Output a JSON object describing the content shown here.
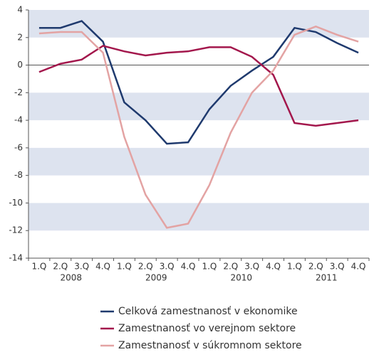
{
  "chart_data": {
    "type": "line",
    "categories": [
      "1.Q",
      "2.Q",
      "3.Q",
      "4.Q",
      "1.Q",
      "2.Q",
      "3.Q",
      "4.Q",
      "1.Q",
      "2.Q",
      "3.Q",
      "4.Q",
      "1.Q",
      "2.Q",
      "3.Q",
      "4.Q"
    ],
    "groups": [
      "2008",
      "2009",
      "2010",
      "2011"
    ],
    "series": [
      {
        "name": "Celková zamestnanosť v ekonomike",
        "color": "#1f3a6e",
        "values": [
          2.7,
          2.7,
          3.2,
          1.7,
          -2.7,
          -4.0,
          -5.7,
          -5.6,
          -3.2,
          -1.5,
          -0.4,
          0.6,
          2.7,
          2.4,
          1.6,
          0.9
        ]
      },
      {
        "name": "Zamestnanosť vo verejnom sektore",
        "color": "#a3174c",
        "values": [
          -0.5,
          0.1,
          0.4,
          1.4,
          1.0,
          0.7,
          0.9,
          1.0,
          1.3,
          1.3,
          0.6,
          -0.7,
          -4.2,
          -4.4,
          -4.2,
          -4.0
        ]
      },
      {
        "name": "Zamestnanosť v súkromnom sektore",
        "color": "#e3a3a3",
        "values": [
          2.3,
          2.4,
          2.4,
          0.9,
          -5.2,
          -9.4,
          -11.8,
          -11.5,
          -8.7,
          -4.9,
          -2.0,
          -0.4,
          2.2,
          2.8,
          2.2,
          1.7
        ]
      }
    ],
    "ylim": [
      -14,
      4
    ],
    "yticks": [
      -14,
      -12,
      -10,
      -8,
      -6,
      -4,
      -2,
      0,
      2,
      4
    ],
    "bands": [
      [
        2,
        4
      ],
      [
        -4,
        -2
      ],
      [
        -8,
        -6
      ],
      [
        -12,
        -10
      ]
    ],
    "band_color": "#dde3ef"
  }
}
